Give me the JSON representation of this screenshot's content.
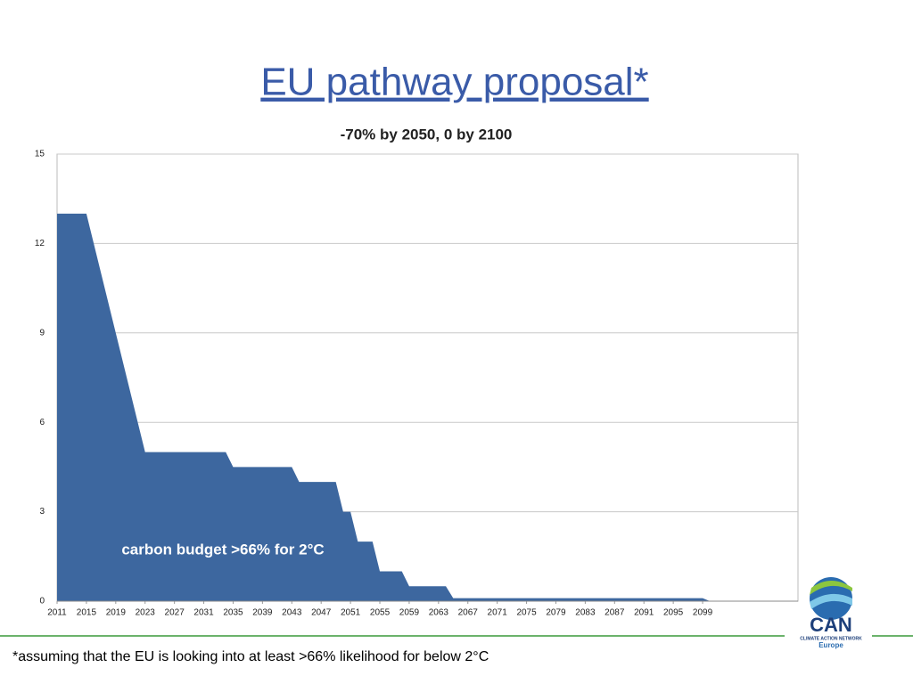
{
  "slide": {
    "title": "EU pathway proposal*",
    "footnote": "*assuming that the EU is looking into at least >66% likelihood for below 2°C",
    "logo": {
      "name": "CAN",
      "subtitle": "CLIMATE ACTION NETWORK",
      "region": "Europe"
    }
  },
  "chart_data": {
    "type": "area",
    "title": "-70% by 2050, 0 by 2100",
    "annotation": "carbon budget >66% for 2°C",
    "x": [
      2011,
      2015,
      2023,
      2034,
      2035,
      2043,
      2044,
      2049,
      2050,
      2051,
      2052,
      2054,
      2055,
      2058,
      2059,
      2064,
      2065,
      2099,
      2100
    ],
    "values": [
      13,
      13,
      5,
      5,
      4.5,
      4.5,
      4,
      4,
      3,
      3,
      2,
      2,
      1,
      1,
      0.5,
      0.5,
      0.1,
      0.1,
      0
    ],
    "color": "#3d679f",
    "xlim": [
      2011,
      2112
    ],
    "xticks": [
      2011,
      2015,
      2019,
      2023,
      2027,
      2031,
      2035,
      2039,
      2043,
      2047,
      2051,
      2055,
      2059,
      2063,
      2067,
      2071,
      2075,
      2079,
      2083,
      2087,
      2091,
      2095,
      2099
    ],
    "ylim": [
      0,
      15
    ],
    "yticks": [
      0,
      3,
      6,
      9,
      12,
      15
    ],
    "grid": true
  }
}
